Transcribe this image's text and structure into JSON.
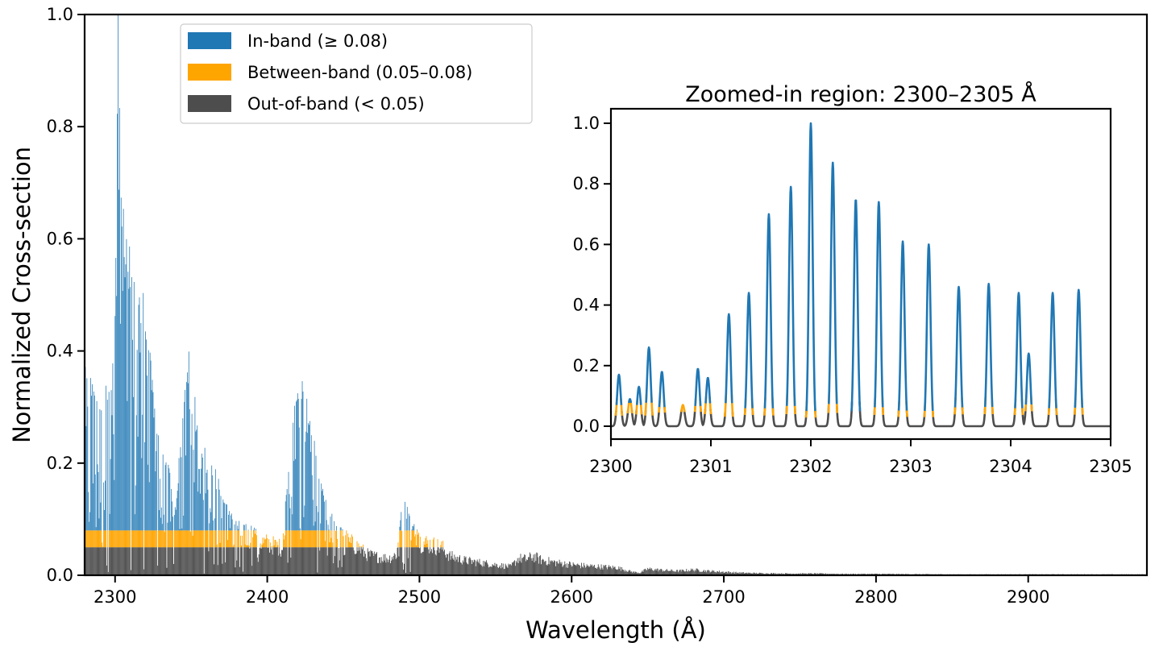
{
  "colors": {
    "in_band": "#1f77b4",
    "between_band": "#ffa500",
    "out_of_band": "#4d4d4d",
    "axis": "#000000",
    "background": "#ffffff"
  },
  "chart_data": [
    {
      "type": "bar",
      "title": "",
      "xlabel": "Wavelength (Å)",
      "ylabel": "Normalized Cross-section",
      "xlim": [
        2280,
        2978
      ],
      "ylim": [
        0.0,
        1.0
      ],
      "x_ticks": [
        2300,
        2400,
        2500,
        2600,
        2700,
        2800,
        2900
      ],
      "y_ticks": [
        0.0,
        0.2,
        0.4,
        0.6,
        0.8,
        1.0
      ],
      "x_tick_labels": [
        "2300",
        "2400",
        "2500",
        "2600",
        "2700",
        "2800",
        "2900"
      ],
      "y_tick_labels": [
        "0.0",
        "0.2",
        "0.4",
        "0.6",
        "0.8",
        "1.0"
      ],
      "legend_position": "top-left",
      "bands": {
        "out_of_band_max": 0.05,
        "between_band_max": 0.08
      },
      "series": [
        {
          "name": "In-band (≥ 0.08)",
          "color_key": "in_band",
          "range": "≥ 0.08"
        },
        {
          "name": "Between-band (0.05–0.08)",
          "color_key": "between_band",
          "range": "0.05–0.08"
        },
        {
          "name": "Out-of-band (< 0.05)",
          "color_key": "out_of_band",
          "range": "< 0.05"
        }
      ],
      "envelope": {
        "x": [
          2280,
          2282,
          2285,
          2290,
          2295,
          2298,
          2300,
          2302,
          2304,
          2306,
          2310,
          2315,
          2320,
          2325,
          2330,
          2335,
          2340,
          2345,
          2348,
          2350,
          2352,
          2355,
          2360,
          2365,
          2370,
          2375,
          2380,
          2385,
          2390,
          2395,
          2400,
          2405,
          2410,
          2415,
          2418,
          2420,
          2422,
          2425,
          2428,
          2430,
          2435,
          2440,
          2445,
          2450,
          2455,
          2460,
          2465,
          2470,
          2475,
          2480,
          2485,
          2488,
          2490,
          2492,
          2494,
          2496,
          2500,
          2505,
          2510,
          2515,
          2520,
          2530,
          2540,
          2550,
          2560,
          2565,
          2570,
          2575,
          2580,
          2590,
          2600,
          2610,
          2620,
          2630,
          2640,
          2645,
          2650,
          2660,
          2670,
          2680,
          2690,
          2700,
          2710,
          2720,
          2740,
          2760,
          2780,
          2800,
          2850,
          2900,
          2950,
          2978
        ],
        "peak": [
          0.38,
          0.35,
          0.37,
          0.33,
          0.36,
          0.38,
          0.48,
          1.0,
          0.72,
          0.64,
          0.58,
          0.54,
          0.5,
          0.34,
          0.24,
          0.2,
          0.12,
          0.35,
          0.4,
          0.45,
          0.33,
          0.26,
          0.22,
          0.2,
          0.16,
          0.12,
          0.1,
          0.1,
          0.09,
          0.08,
          0.075,
          0.07,
          0.065,
          0.24,
          0.32,
          0.37,
          0.39,
          0.33,
          0.3,
          0.26,
          0.17,
          0.12,
          0.1,
          0.085,
          0.075,
          0.066,
          0.05,
          0.045,
          0.042,
          0.04,
          0.05,
          0.12,
          0.16,
          0.13,
          0.11,
          0.1,
          0.08,
          0.075,
          0.07,
          0.065,
          0.045,
          0.035,
          0.03,
          0.025,
          0.02,
          0.04,
          0.038,
          0.045,
          0.036,
          0.03,
          0.025,
          0.022,
          0.02,
          0.018,
          0.008,
          0.006,
          0.015,
          0.012,
          0.01,
          0.013,
          0.01,
          0.008,
          0.006,
          0.005,
          0.004,
          0.004,
          0.003,
          0.003,
          0.002,
          0.002,
          0.002,
          0.002
        ]
      }
    },
    {
      "type": "line",
      "title": "Zoomed-in region: 2300–2305 Å",
      "xlabel": "",
      "ylabel": "",
      "xlim": [
        2300,
        2305
      ],
      "ylim": [
        0.0,
        1.0
      ],
      "x_ticks": [
        2300,
        2301,
        2302,
        2303,
        2304,
        2305
      ],
      "y_ticks": [
        0.0,
        0.2,
        0.4,
        0.6,
        0.8,
        1.0
      ],
      "x_tick_labels": [
        "2300",
        "2301",
        "2302",
        "2303",
        "2304",
        "2305"
      ],
      "y_tick_labels": [
        "0.0",
        "0.2",
        "0.4",
        "0.6",
        "0.8",
        "1.0"
      ],
      "peaks": {
        "x": [
          2300.08,
          2300.19,
          2300.28,
          2300.38,
          2300.51,
          2300.72,
          2300.87,
          2300.97,
          2301.18,
          2301.38,
          2301.58,
          2301.8,
          2302.0,
          2302.22,
          2302.45,
          2302.68,
          2302.92,
          2303.18,
          2303.48,
          2303.78,
          2304.08,
          2304.18,
          2304.42,
          2304.68
        ],
        "y": [
          0.17,
          0.09,
          0.13,
          0.26,
          0.18,
          0.07,
          0.19,
          0.16,
          0.37,
          0.44,
          0.7,
          0.79,
          1.0,
          0.87,
          0.75,
          0.74,
          0.61,
          0.6,
          0.46,
          0.47,
          0.44,
          0.24,
          0.44,
          0.45
        ]
      }
    }
  ]
}
